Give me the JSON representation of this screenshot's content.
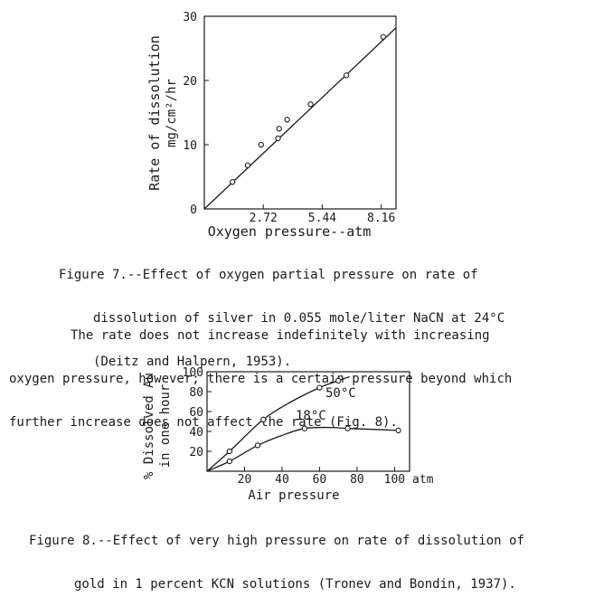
{
  "figure7": {
    "chart_data": {
      "type": "scatter",
      "xlabel": "Oxygen pressure--atm",
      "ylabel_line1": "Rate of dissolution",
      "ylabel_line2": "mg/cm²/hr",
      "x_ticks": [
        "2.72",
        "5.44",
        "8.16"
      ],
      "y_ticks": [
        "0",
        "10",
        "20",
        "30"
      ],
      "xlim": [
        0,
        8.84
      ],
      "ylim": [
        0,
        30
      ],
      "points": [
        {
          "x": 1.3,
          "y": 4.2
        },
        {
          "x": 2.0,
          "y": 6.8
        },
        {
          "x": 2.62,
          "y": 10.0
        },
        {
          "x": 3.4,
          "y": 11.0
        },
        {
          "x": 3.45,
          "y": 12.5
        },
        {
          "x": 3.82,
          "y": 13.9
        },
        {
          "x": 4.9,
          "y": 16.3
        },
        {
          "x": 6.55,
          "y": 20.8
        },
        {
          "x": 8.25,
          "y": 26.8
        }
      ],
      "fit_line": {
        "x": [
          0,
          8.84
        ],
        "y": [
          0,
          28.2
        ]
      }
    },
    "caption_lines": [
      "Figure 7.--Effect of oxygen partial pressure on rate of",
      "dissolution of silver in 0.055 mole/liter NaCN at 24°C",
      "(Deitz and Halpern, 1953)."
    ]
  },
  "paragraph_lines": [
    "The rate does not increase indefinitely with increasing",
    "oxygen pressure, however; there is a certain pressure beyond which",
    "further increase does not affect the rate (Fig. 8)."
  ],
  "figure8": {
    "chart_data": {
      "type": "line",
      "xlabel": "Air pressure",
      "x_unit": "atm",
      "ylabel_line1": "% Dissolved Au",
      "ylabel_line2": "in one hour",
      "x_ticks": [
        "20",
        "40",
        "60",
        "80",
        "100"
      ],
      "y_ticks": [
        "20",
        "40",
        "60",
        "80",
        "100"
      ],
      "xlim": [
        0,
        108
      ],
      "ylim": [
        0,
        100
      ],
      "series": [
        {
          "name": "50°C",
          "points": [
            {
              "x": 12,
              "y": 20
            },
            {
              "x": 30,
              "y": 52
            },
            {
              "x": 60,
              "y": 84
            },
            {
              "x": 70,
              "y": 91
            }
          ],
          "curve": [
            [
              0,
              0
            ],
            [
              12,
              20
            ],
            [
              30,
              52
            ],
            [
              45,
              70
            ],
            [
              60,
              84
            ],
            [
              70,
              91
            ],
            [
              76,
              95
            ]
          ]
        },
        {
          "name": "18°C",
          "points": [
            {
              "x": 12,
              "y": 10
            },
            {
              "x": 27,
              "y": 26
            },
            {
              "x": 52,
              "y": 43
            },
            {
              "x": 75,
              "y": 43
            },
            {
              "x": 102,
              "y": 41
            }
          ],
          "curve": [
            [
              0,
              0
            ],
            [
              12,
              10
            ],
            [
              27,
              26
            ],
            [
              40,
              36
            ],
            [
              52,
              43
            ],
            [
              65,
              44
            ],
            [
              75,
              43
            ],
            [
              90,
              42
            ],
            [
              102,
              41
            ]
          ]
        }
      ]
    },
    "caption_lines": [
      "Figure 8.--Effect of very high pressure on rate of dissolution of",
      "gold in 1 percent KCN solutions (Tronev and Bondin, 1937)."
    ]
  }
}
